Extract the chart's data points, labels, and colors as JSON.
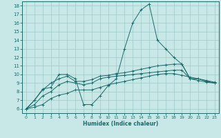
{
  "xlabel": "Humidex (Indice chaleur)",
  "xlim": [
    -0.5,
    23.5
  ],
  "ylim": [
    5.5,
    18.5
  ],
  "xticks": [
    0,
    1,
    2,
    3,
    4,
    5,
    6,
    7,
    8,
    9,
    10,
    11,
    12,
    13,
    14,
    15,
    16,
    17,
    18,
    19,
    20,
    21,
    22,
    23
  ],
  "yticks": [
    6,
    7,
    8,
    9,
    10,
    11,
    12,
    13,
    14,
    15,
    16,
    17,
    18
  ],
  "bg_color": "#c8e8e8",
  "grid_color": "#a0c8c8",
  "line_color": "#1a6b6b",
  "line1": [
    6.0,
    7.0,
    8.3,
    8.5,
    10.0,
    10.0,
    9.5,
    6.5,
    6.5,
    7.5,
    8.7,
    9.5,
    13.0,
    16.0,
    17.5,
    18.2,
    14.0,
    13.0,
    12.0,
    11.2,
    9.5,
    9.5,
    9.2,
    9.0
  ],
  "line2": [
    6.0,
    7.0,
    8.2,
    9.0,
    9.5,
    9.8,
    9.2,
    9.2,
    9.4,
    9.8,
    9.9,
    10.1,
    10.2,
    10.4,
    10.6,
    10.8,
    11.0,
    11.1,
    11.2,
    11.2,
    9.5,
    9.5,
    9.2,
    9.0
  ],
  "line3": [
    6.0,
    6.5,
    7.5,
    8.0,
    8.8,
    9.2,
    9.0,
    8.8,
    9.0,
    9.5,
    9.7,
    9.8,
    9.9,
    10.0,
    10.1,
    10.2,
    10.3,
    10.4,
    10.5,
    10.5,
    9.5,
    9.3,
    9.1,
    9.0
  ],
  "line4": [
    6.0,
    6.2,
    6.5,
    7.2,
    7.6,
    7.8,
    8.2,
    8.2,
    8.2,
    8.5,
    8.8,
    9.0,
    9.2,
    9.4,
    9.6,
    9.8,
    10.0,
    10.1,
    10.1,
    9.9,
    9.7,
    9.5,
    9.3,
    9.1
  ]
}
